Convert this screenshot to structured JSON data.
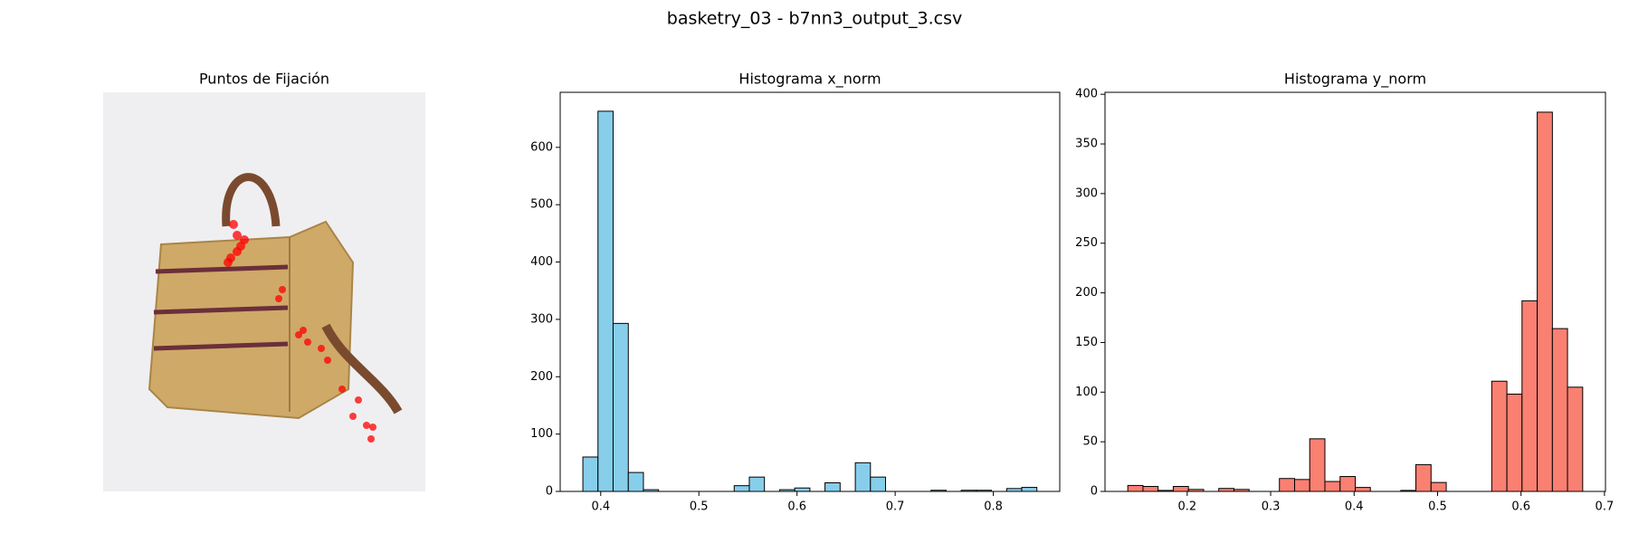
{
  "title": "basketry_03 - b7nn3_output_3.csv",
  "chart_data": [
    {
      "type": "image",
      "title": "Puntos de Fijación"
    },
    {
      "type": "histogram",
      "title": "Histograma x_norm",
      "color": "#87ceeb",
      "edgecolor": "#000000",
      "bins": [
        0.3818,
        0.3972,
        0.4126,
        0.4281,
        0.4435,
        0.4589,
        0.4743,
        0.4897,
        0.5052,
        0.5206,
        0.536,
        0.5514,
        0.5668,
        0.5823,
        0.5977,
        0.6131,
        0.6285,
        0.6439,
        0.6594,
        0.6748,
        0.6902,
        0.7056,
        0.721,
        0.7365,
        0.7519,
        0.7673,
        0.7827,
        0.7981,
        0.8136,
        0.829,
        0.8444
      ],
      "values": [
        60,
        663,
        293,
        33,
        3,
        0,
        0,
        0,
        0,
        0,
        10,
        25,
        0,
        3,
        6,
        0,
        15,
        0,
        50,
        25,
        0,
        0,
        0,
        2,
        0,
        2,
        2,
        0,
        5,
        7
      ],
      "xlim": [
        0.3587,
        0.8677
      ],
      "xticks": [
        0.4,
        0.5,
        0.6,
        0.7,
        0.8
      ],
      "ylim": [
        0,
        696
      ],
      "yticks": [
        0,
        100,
        200,
        300,
        400,
        500,
        600
      ]
    },
    {
      "type": "histogram",
      "title": "Histograma y_norm",
      "color": "#fa8072",
      "edgecolor": "#000000",
      "bins": [
        0.1288,
        0.147,
        0.1651,
        0.1833,
        0.2015,
        0.2197,
        0.2378,
        0.256,
        0.2742,
        0.2923,
        0.3105,
        0.3287,
        0.3468,
        0.365,
        0.3832,
        0.4014,
        0.4195,
        0.4377,
        0.4559,
        0.474,
        0.4922,
        0.5104,
        0.5285,
        0.5467,
        0.5649,
        0.5831,
        0.6012,
        0.6194,
        0.6376,
        0.6557,
        0.6739
      ],
      "values": [
        6,
        5,
        1,
        5,
        2,
        0,
        3,
        2,
        0,
        0,
        13,
        12,
        53,
        10,
        15,
        4,
        0,
        0,
        1,
        27,
        9,
        0,
        0,
        0,
        111,
        98,
        192,
        382,
        164,
        105
      ],
      "xlim": [
        0.1015,
        0.7012
      ],
      "xticks": [
        0.2,
        0.3,
        0.4,
        0.5,
        0.6,
        0.7
      ],
      "ylim": [
        0,
        402
      ],
      "yticks": [
        0,
        50,
        100,
        150,
        200,
        250,
        300,
        350,
        400
      ]
    }
  ]
}
